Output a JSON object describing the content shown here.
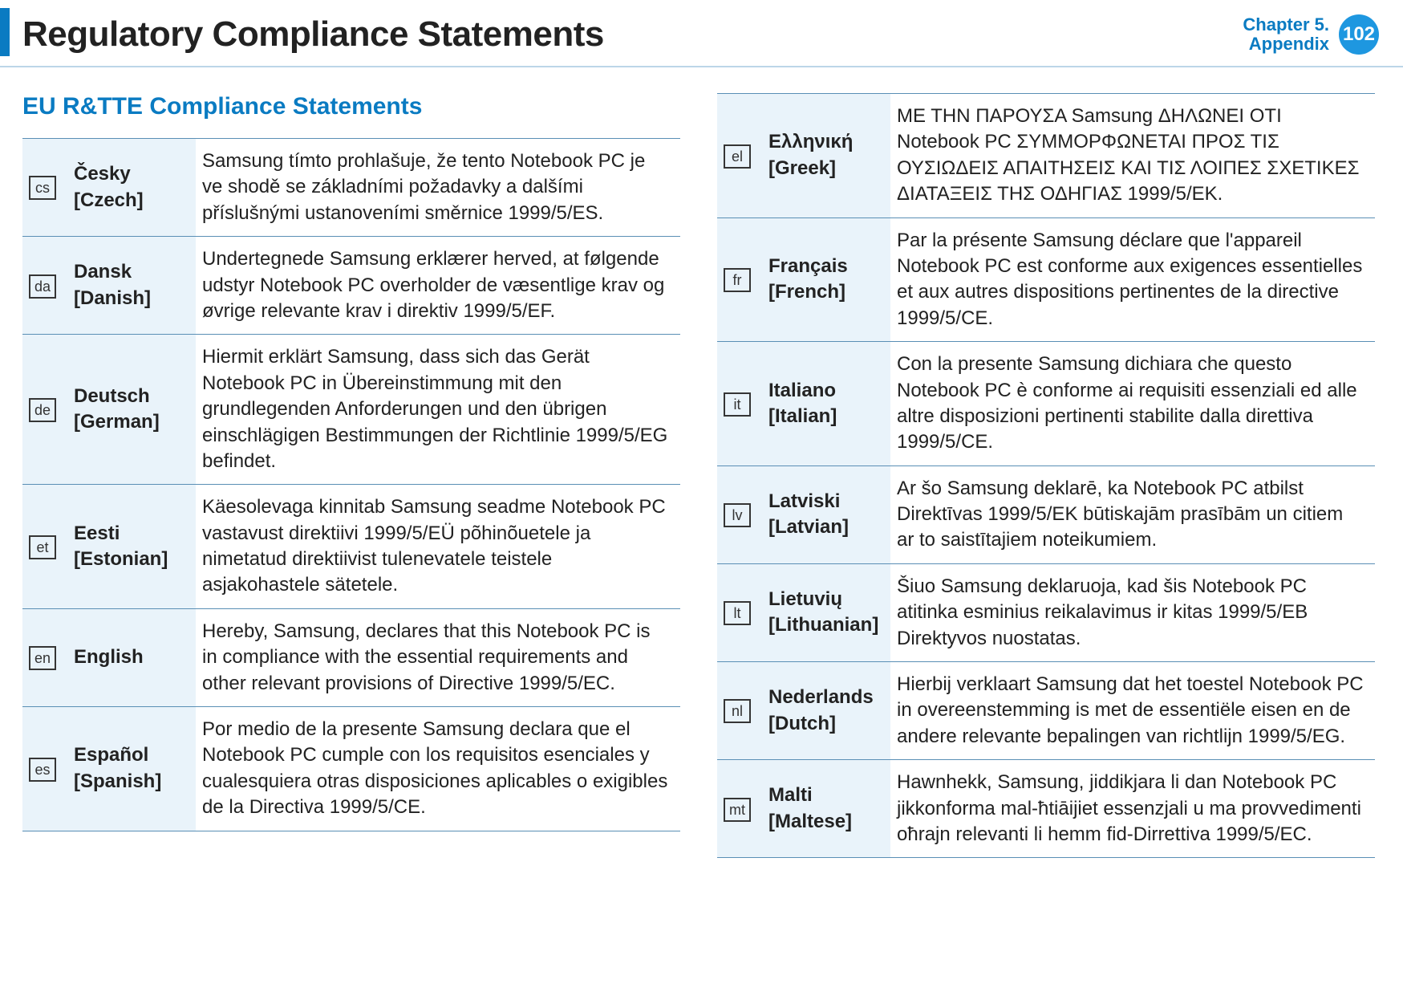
{
  "header": {
    "title": "Regulatory Compliance Statements",
    "chapter_line1": "Chapter 5.",
    "chapter_line2": "Appendix",
    "page_number": "102"
  },
  "section_title": "EU R&TTE Compliance Statements",
  "colors": {
    "accent": "#0a7bc2",
    "badge": "#1e97e0",
    "row_border": "#5a8fb5",
    "label_bg": "#e9f3fa",
    "header_border": "#bcd6e8"
  },
  "left": [
    {
      "code": "cs",
      "native": "Česky",
      "english": "[Czech]",
      "statement": "Samsung tímto prohlašuje, že tento Notebook PC je ve shodě se základními požadavky a dalšími příslušnými ustanoveními směrnice 1999/5/ES."
    },
    {
      "code": "da",
      "native": "Dansk",
      "english": "[Danish]",
      "statement": "Undertegnede Samsung erklærer herved, at følgende udstyr Notebook PC overholder de væsentlige krav og øvrige relevante krav i direktiv 1999/5/EF."
    },
    {
      "code": "de",
      "native": "Deutsch",
      "english": "[German]",
      "statement": "Hiermit erklärt Samsung, dass sich das Gerät Notebook PC in Übereinstimmung mit den grundlegenden Anforderungen und den übrigen einschlägigen Bestimmungen der Richtlinie 1999/5/EG befindet."
    },
    {
      "code": "et",
      "native": "Eesti",
      "english": "[Estonian]",
      "statement": "Käesolevaga kinnitab Samsung seadme Notebook PC vastavust direktiivi 1999/5/EÜ põhinõuetele ja nimetatud direktiivist tulenevatele teistele asjakohastele sätetele."
    },
    {
      "code": "en",
      "native": "English",
      "english": "",
      "statement": "Hereby, Samsung, declares that this Notebook PC is in compliance with the essential requirements and other relevant provisions of Directive 1999/5/EC."
    },
    {
      "code": "es",
      "native": "Español",
      "english": "[Spanish]",
      "statement": "Por medio de la presente Samsung declara que el Notebook PC cumple con los requisitos esenciales y cualesquiera otras disposiciones aplicables o exigibles de la Directiva 1999/5/CE."
    }
  ],
  "right": [
    {
      "code": "el",
      "native": "Ελληνική",
      "english": "[Greek]",
      "statement": "ΜΕ ΤΗΝ ΠΑΡΟΥΣΑ Samsung ΔΗΛΩΝΕΙ ΟΤΙ Notebook PC ΣΥΜΜΟΡΦΩΝΕΤΑΙ ΠΡΟΣ ΤΙΣ ΟΥΣΙΩΔΕΙΣ ΑΠΑΙΤΗΣΕΙΣ ΚΑΙ ΤΙΣ ΛΟΙΠΕΣ ΣΧΕΤΙΚΕΣ ΔΙΑΤΑΞΕΙΣ ΤΗΣ ΟΔΗΓΙΑΣ 1999/5/ΕΚ."
    },
    {
      "code": "fr",
      "native": "Français",
      "english": "[French]",
      "statement": "Par la présente Samsung déclare que l'appareil Notebook PC est conforme aux exigences essentielles et aux autres dispositions pertinentes de la directive 1999/5/CE."
    },
    {
      "code": "it",
      "native": "Italiano",
      "english": "[Italian]",
      "statement": "Con la presente Samsung dichiara che questo Notebook PC è conforme ai requisiti essenziali ed alle altre disposizioni pertinenti stabilite dalla direttiva 1999/5/CE."
    },
    {
      "code": "lv",
      "native": "Latviski",
      "english": "[Latvian]",
      "statement": "Ar šo Samsung deklarē, ka Notebook PC atbilst Direktīvas 1999/5/EK būtiskajām prasībām un citiem ar to saistītajiem noteikumiem."
    },
    {
      "code": "lt",
      "native": "Lietuvių",
      "english": "[Lithuanian]",
      "statement": "Šiuo Samsung deklaruoja, kad šis Notebook PC atitinka esminius reikalavimus ir kitas 1999/5/EB Direktyvos nuostatas."
    },
    {
      "code": "nl",
      "native": "Nederlands",
      "english": "[Dutch]",
      "statement": "Hierbij verklaart Samsung dat het toestel Notebook PC in overeenstemming is met de essentiële eisen en de andere relevante bepalingen van richtlijn 1999/5/EG."
    },
    {
      "code": "mt",
      "native": "Malti",
      "english": "[Maltese]",
      "statement": "Hawnhekk, Samsung, jiddikjara li dan Notebook PC jikkonforma mal-ħtiāijiet essenzjali u ma provvedimenti oħrajn relevanti li hemm fid-Dirrettiva 1999/5/EC."
    }
  ]
}
